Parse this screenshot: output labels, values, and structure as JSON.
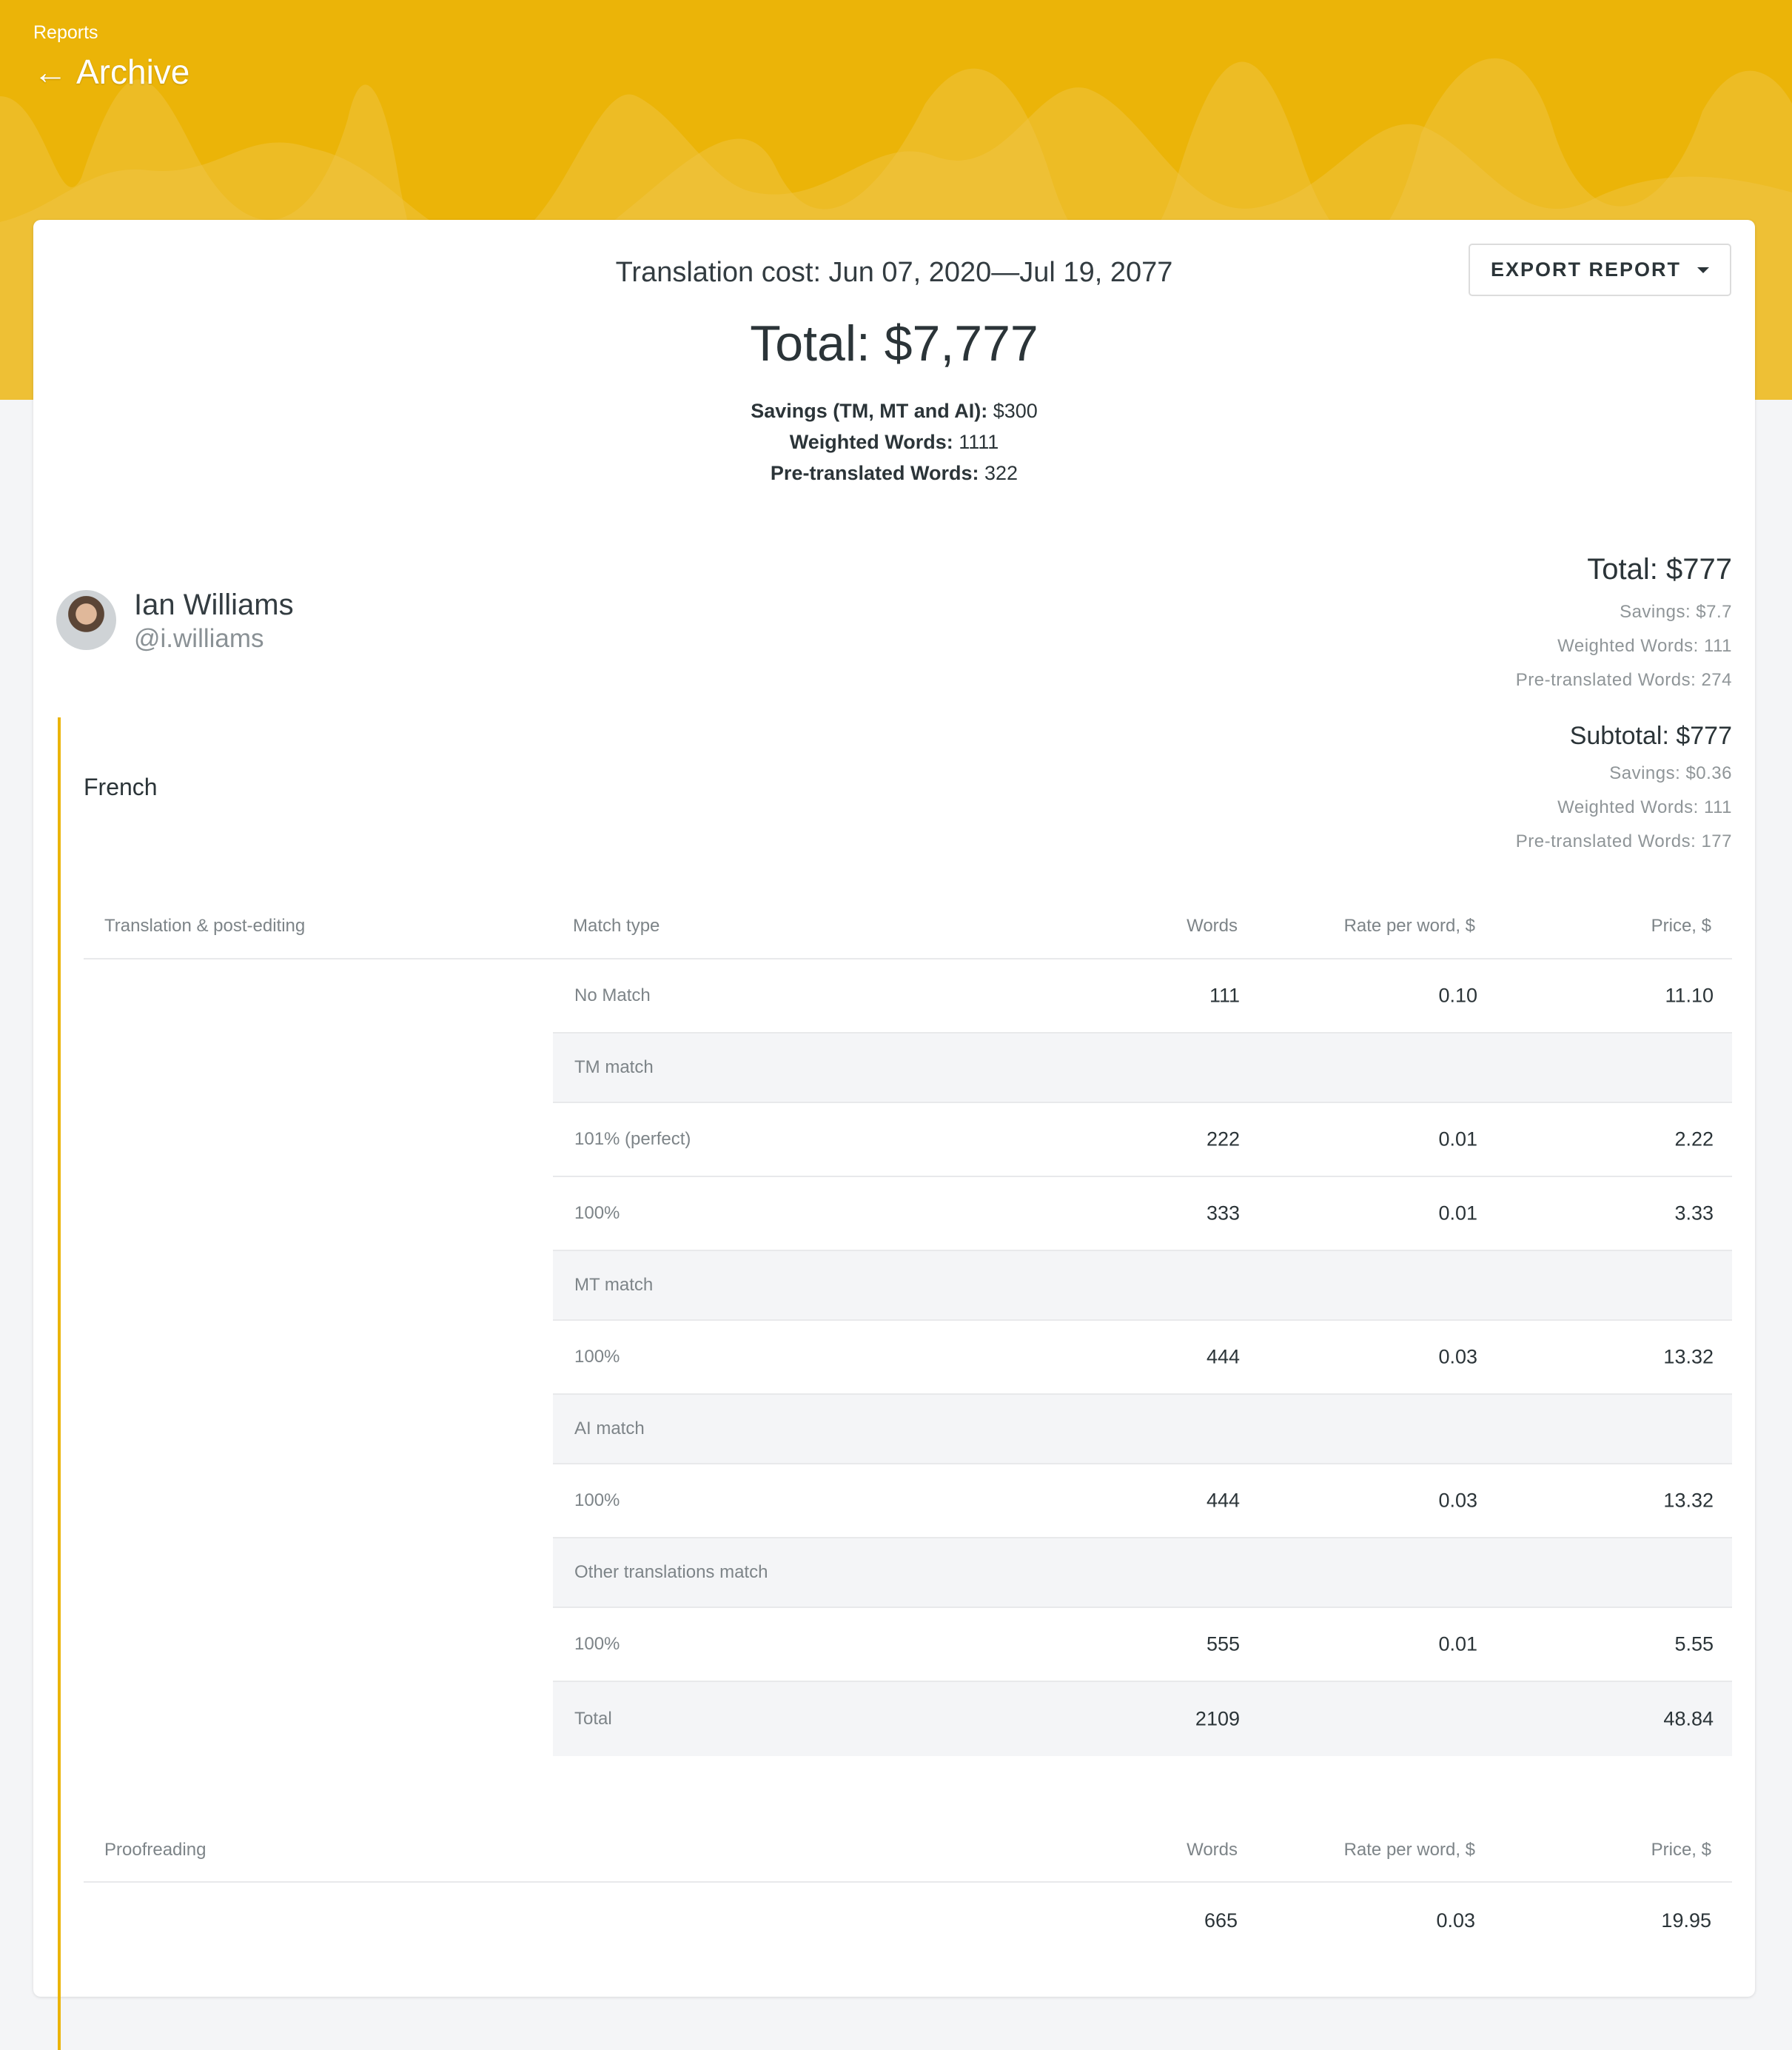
{
  "header": {
    "breadcrumb": "Reports",
    "title": "Archive",
    "accent": "#ebb408"
  },
  "summary": {
    "title": "Translation cost: Jun 07, 2020—Jul 19, 2077",
    "total": "Total: $7,777",
    "stats": [
      {
        "label": "Savings (TM, MT and AI):",
        "value": "$300"
      },
      {
        "label": "Weighted Words:",
        "value": "1111"
      },
      {
        "label": "Pre-translated Words:",
        "value": "322"
      }
    ],
    "export_label": "EXPORT REPORT"
  },
  "user": {
    "name": "Ian Williams",
    "handle": "@i.williams",
    "total": "Total: $777",
    "savings": "Savings: $7.7",
    "weighted": "Weighted Words: 111",
    "pretranslated": "Pre-translated Words: 274"
  },
  "language": {
    "name": "French",
    "subtotal": "Subtotal: $777",
    "savings": "Savings: $0.36",
    "weighted": "Weighted Words: 111",
    "pretranslated": "Pre-translated Words: 177"
  },
  "translation_table": {
    "headers": [
      "Translation & post-editing",
      "Match type",
      "Words",
      "Rate per word, $",
      "Price, $"
    ],
    "rows": [
      {
        "type": "data",
        "label": "No Match",
        "words": "111",
        "rate": "0.10",
        "price": "11.10"
      },
      {
        "type": "group",
        "label": "TM match"
      },
      {
        "type": "data",
        "label": "101% (perfect)",
        "words": "222",
        "rate": "0.01",
        "price": "2.22"
      },
      {
        "type": "data",
        "label": "100%",
        "words": "333",
        "rate": "0.01",
        "price": "3.33"
      },
      {
        "type": "group",
        "label": "MT match"
      },
      {
        "type": "data",
        "label": "100%",
        "words": "444",
        "rate": "0.03",
        "price": "13.32"
      },
      {
        "type": "group",
        "label": "AI match"
      },
      {
        "type": "data",
        "label": "100%",
        "words": "444",
        "rate": "0.03",
        "price": "13.32"
      },
      {
        "type": "group",
        "label": "Other translations match"
      },
      {
        "type": "data",
        "label": "100%",
        "words": "555",
        "rate": "0.01",
        "price": "5.55"
      },
      {
        "type": "total",
        "label": "Total",
        "words": "2109",
        "rate": "",
        "price": "48.84"
      }
    ]
  },
  "proofreading_table": {
    "headers": [
      "Proofreading",
      "Words",
      "Rate per word, $",
      "Price, $"
    ],
    "row": {
      "words": "665",
      "rate": "0.03",
      "price": "19.95"
    }
  }
}
